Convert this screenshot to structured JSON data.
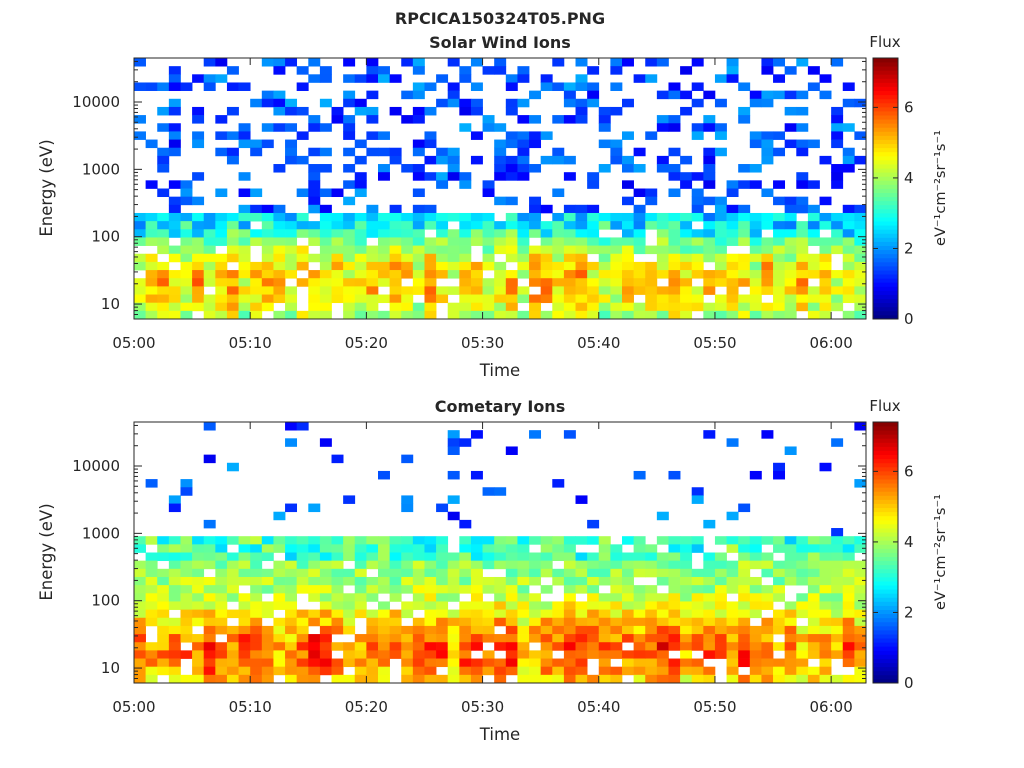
{
  "figure": {
    "title": "RPCICA150324T05.PNG"
  },
  "chart_data": [
    {
      "type": "heatmap",
      "title": "Solar Wind Ions",
      "xlabel": "Time",
      "ylabel": "Energy (eV)",
      "x_ticks": [
        "05:00",
        "05:10",
        "05:20",
        "05:30",
        "05:40",
        "05:50",
        "06:00"
      ],
      "x_range": [
        "05:00",
        "06:03"
      ],
      "y_ticks": [
        "10",
        "100",
        "1000",
        "10000"
      ],
      "y_scale": "log",
      "y_range": [
        6,
        45000
      ],
      "colorbar": {
        "label": "Flux",
        "units": "eV⁻¹cm⁻²sr⁻¹s⁻¹",
        "ticks": [
          "0",
          "2",
          "4",
          "6"
        ],
        "range": [
          0,
          7.4
        ],
        "colormap": "jet"
      },
      "profile": {
        "low_energy_max_eV": 250,
        "low_energy_flux_typical": 3,
        "peak_flux": 5.2,
        "peak_energy_eV": 20,
        "high_energy_flux": 0.8,
        "high_energy_fill": "sparse"
      }
    },
    {
      "type": "heatmap",
      "title": "Cometary Ions",
      "xlabel": "Time",
      "ylabel": "Energy (eV)",
      "x_ticks": [
        "05:00",
        "05:10",
        "05:20",
        "05:30",
        "05:40",
        "05:50",
        "06:00"
      ],
      "x_range": [
        "05:00",
        "06:03"
      ],
      "y_ticks": [
        "10",
        "100",
        "1000",
        "10000"
      ],
      "y_scale": "log",
      "y_range": [
        6,
        45000
      ],
      "colorbar": {
        "label": "Flux",
        "units": "eV⁻¹cm⁻²sr⁻¹s⁻¹",
        "ticks": [
          "0",
          "2",
          "4",
          "6"
        ],
        "range": [
          0,
          7.4
        ],
        "colormap": "jet"
      },
      "profile": {
        "low_energy_max_eV": 1000,
        "low_energy_flux_typical": 3.8,
        "peak_flux": 6.0,
        "peak_energy_eV": 18,
        "high_energy_flux": 0.8,
        "high_energy_fill": "very sparse"
      }
    }
  ]
}
